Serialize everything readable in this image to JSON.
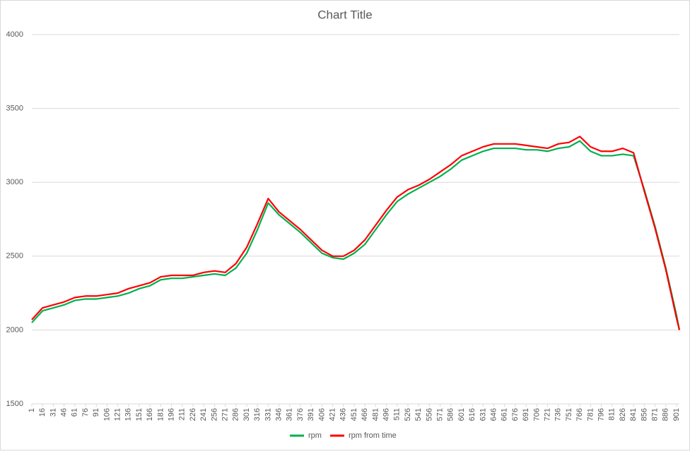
{
  "chart_data": {
    "type": "line",
    "title": "Chart Title",
    "x": [
      1,
      16,
      31,
      46,
      61,
      76,
      91,
      106,
      121,
      136,
      151,
      166,
      181,
      196,
      211,
      226,
      241,
      256,
      271,
      286,
      301,
      316,
      331,
      346,
      361,
      376,
      391,
      406,
      421,
      436,
      451,
      466,
      481,
      496,
      511,
      526,
      541,
      556,
      571,
      586,
      601,
      616,
      631,
      646,
      661,
      676,
      691,
      706,
      721,
      736,
      751,
      766,
      781,
      796,
      811,
      826,
      841,
      856,
      871,
      886,
      901,
      905
    ],
    "series": [
      {
        "name": "rpm",
        "color": "#00b050",
        "values": [
          2050,
          2130,
          2150,
          2170,
          2200,
          2210,
          2210,
          2220,
          2230,
          2250,
          2280,
          2300,
          2340,
          2350,
          2350,
          2360,
          2370,
          2380,
          2370,
          2420,
          2520,
          2680,
          2860,
          2780,
          2720,
          2660,
          2590,
          2520,
          2490,
          2480,
          2520,
          2580,
          2680,
          2780,
          2870,
          2920,
          2960,
          3000,
          3040,
          3090,
          3150,
          3180,
          3210,
          3230,
          3230,
          3230,
          3220,
          3220,
          3210,
          3230,
          3240,
          3280,
          3210,
          3180,
          3180,
          3190,
          3180,
          2950,
          2700,
          2420,
          2100,
          2000
        ]
      },
      {
        "name": "rpm from time",
        "color": "#ff0000",
        "values": [
          2070,
          2150,
          2170,
          2190,
          2220,
          2230,
          2230,
          2240,
          2250,
          2280,
          2300,
          2320,
          2360,
          2370,
          2370,
          2370,
          2390,
          2400,
          2390,
          2450,
          2560,
          2720,
          2890,
          2800,
          2740,
          2680,
          2610,
          2540,
          2500,
          2500,
          2540,
          2610,
          2710,
          2810,
          2900,
          2950,
          2980,
          3020,
          3070,
          3120,
          3180,
          3210,
          3240,
          3260,
          3260,
          3260,
          3250,
          3240,
          3230,
          3260,
          3270,
          3310,
          3240,
          3210,
          3210,
          3230,
          3200,
          2940,
          2690,
          2410,
          2080,
          2000
        ]
      }
    ],
    "xlim": [
      1,
      905
    ],
    "xticks": [
      1,
      16,
      31,
      46,
      61,
      76,
      91,
      106,
      121,
      136,
      151,
      166,
      181,
      196,
      211,
      226,
      241,
      256,
      271,
      286,
      301,
      316,
      331,
      346,
      361,
      376,
      391,
      406,
      421,
      436,
      451,
      466,
      481,
      496,
      511,
      526,
      541,
      556,
      571,
      586,
      601,
      616,
      631,
      646,
      661,
      676,
      691,
      706,
      721,
      736,
      751,
      766,
      781,
      796,
      811,
      826,
      841,
      856,
      871,
      886,
      901
    ],
    "ylim": [
      1500,
      4000
    ],
    "yticks": [
      1500,
      2000,
      2500,
      3000,
      3500,
      4000
    ],
    "grid": true,
    "legend": "bottom"
  }
}
